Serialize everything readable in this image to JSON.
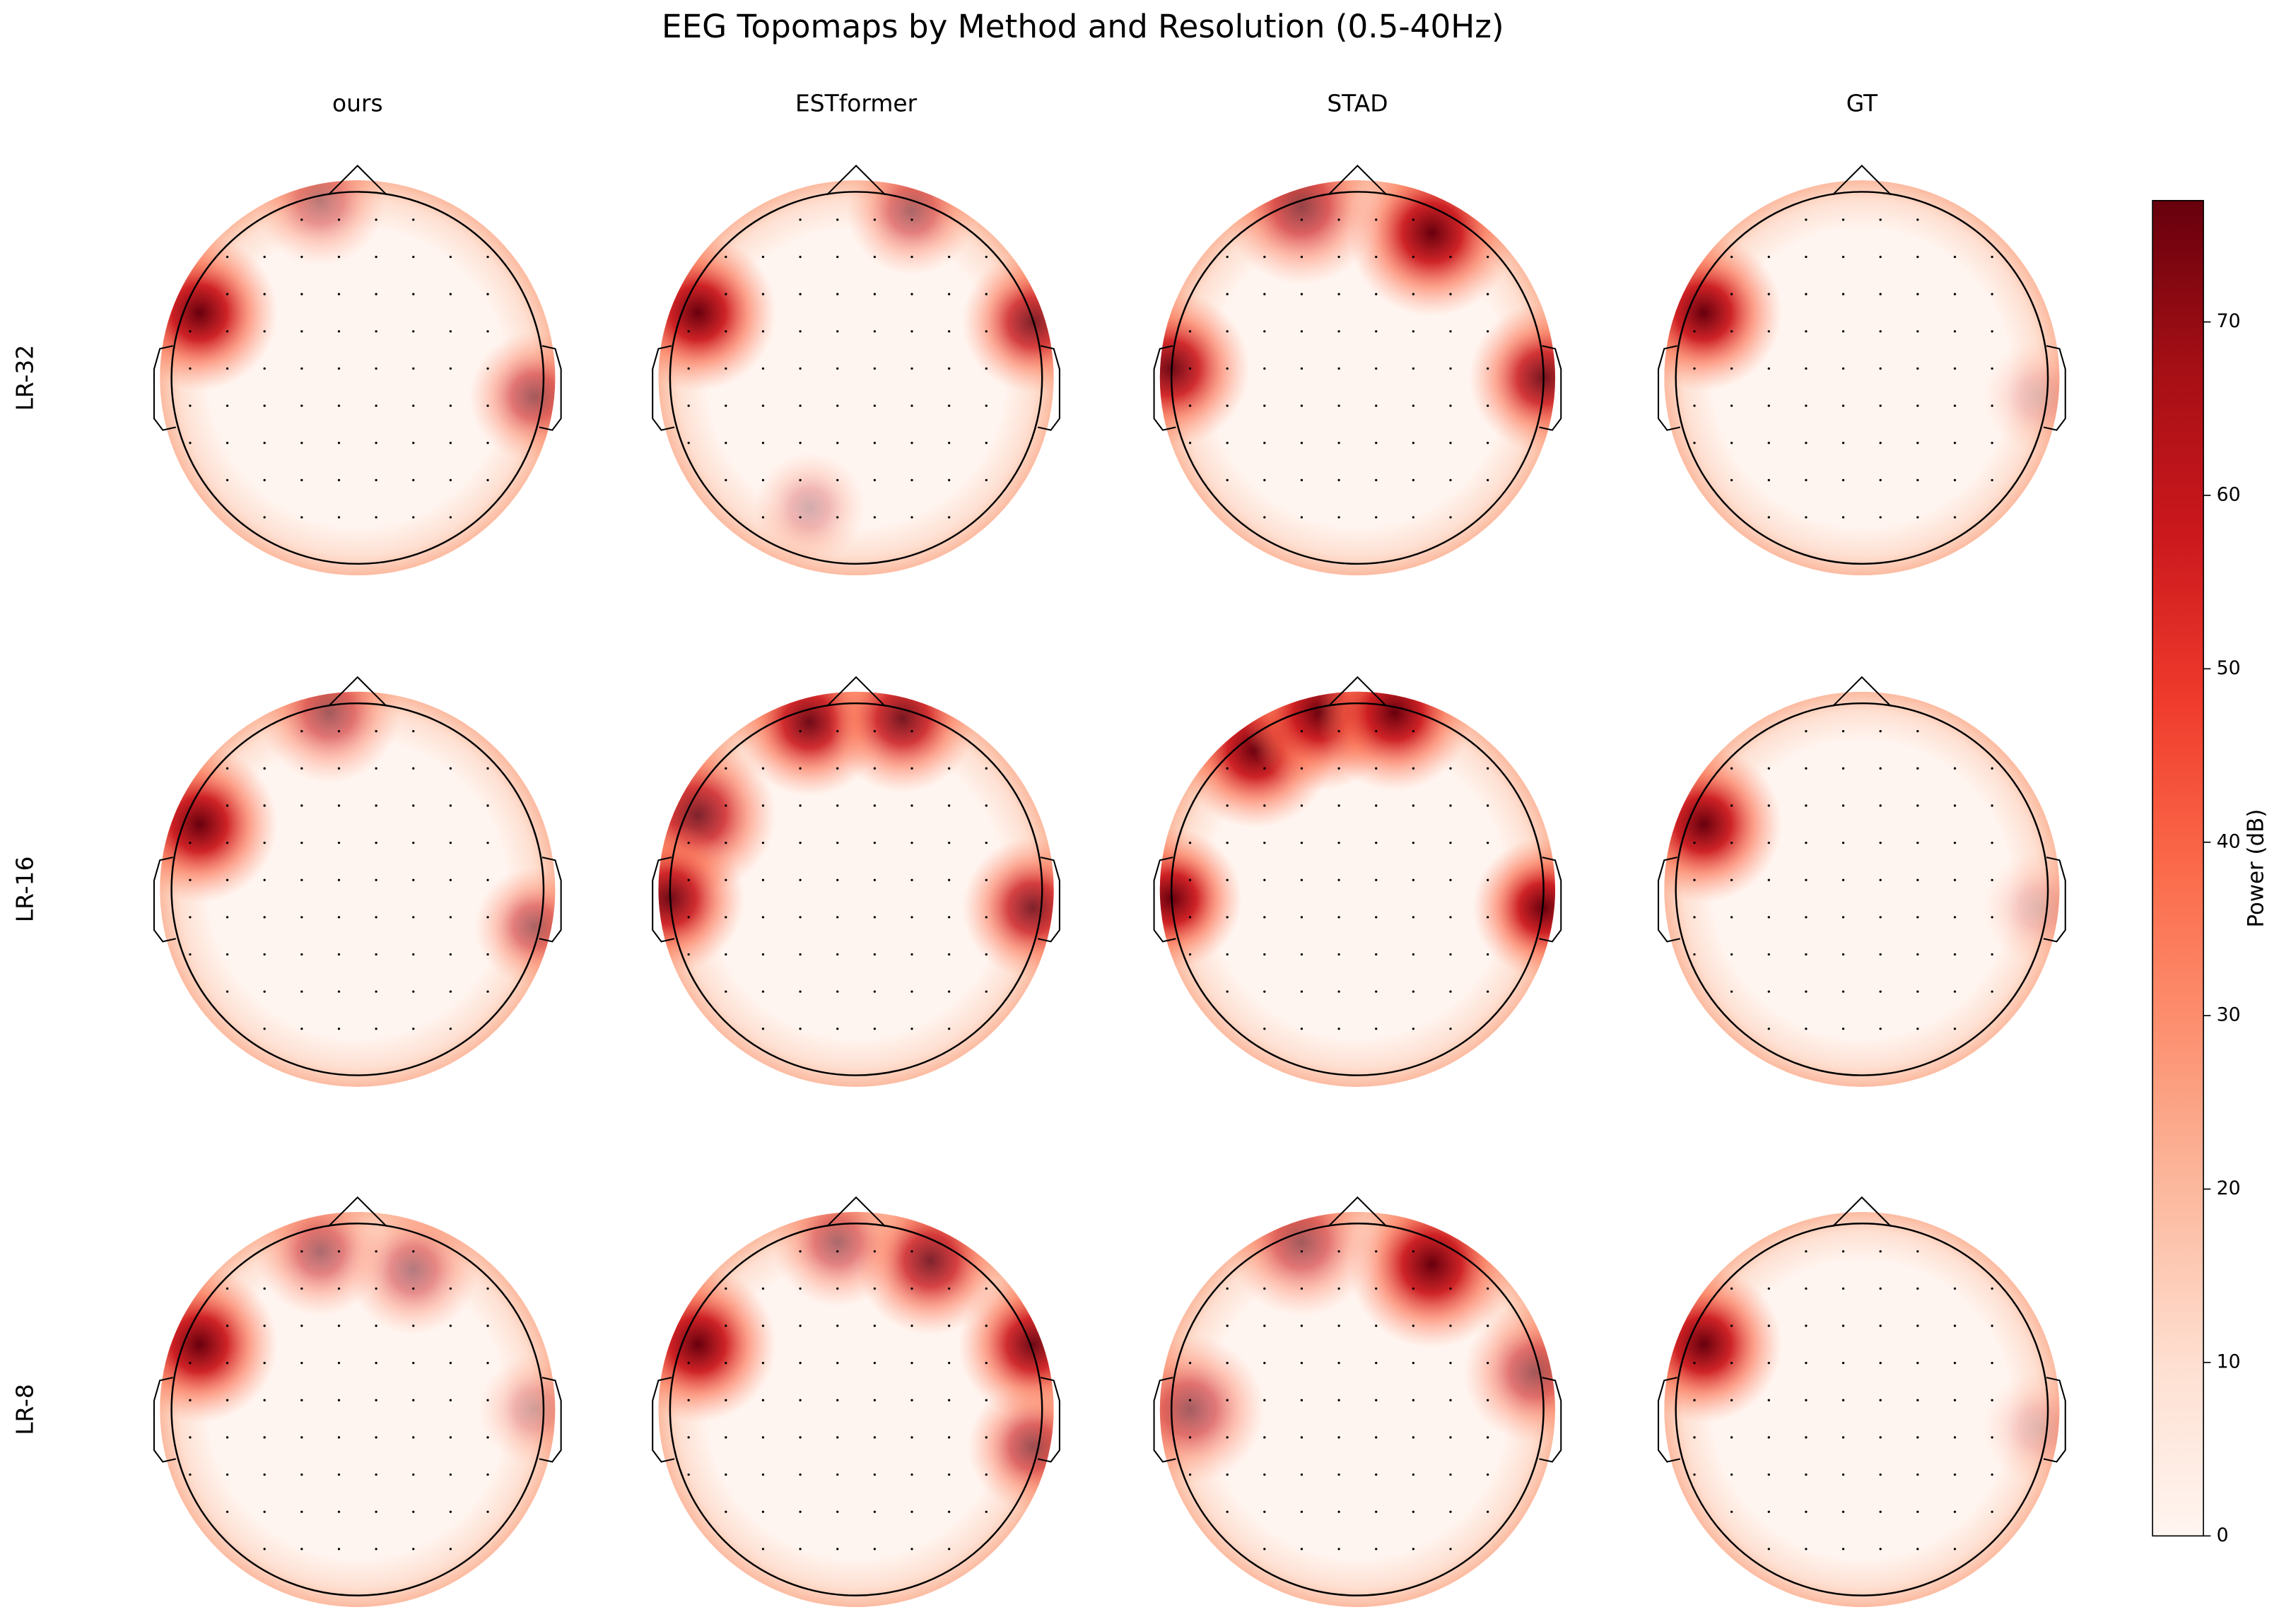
{
  "chart_data": {
    "type": "topomap",
    "title": "EEG Topomaps by Method and Resolution (0.5-40Hz)",
    "columns": [
      "ours",
      "ESTformer",
      "STAD",
      "GT"
    ],
    "rows": [
      "LR-32",
      "LR-16",
      "LR-8"
    ],
    "colorbar": {
      "label": "Power (dB)",
      "lim": [
        0,
        77
      ],
      "ticks": [
        0,
        10,
        20,
        30,
        40,
        50,
        60,
        70
      ],
      "colors": [
        "#fff5f0",
        "#fee0d2",
        "#fcbba1",
        "#fc9272",
        "#fb6a4a",
        "#ef3b2c",
        "#cb181d",
        "#a50f15",
        "#67000d"
      ]
    }
  }
}
